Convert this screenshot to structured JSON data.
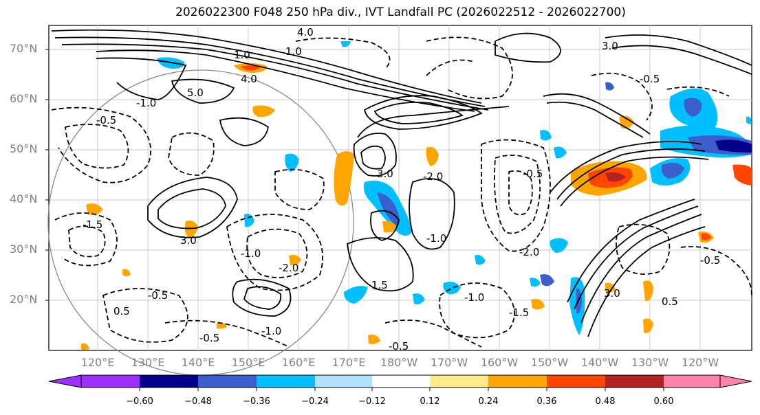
{
  "title": "2026022300 F048 250 hPa div., IVT Landfall PC (2026022512 - 2026022700)",
  "map": {
    "lat_labels": [
      "70°N",
      "60°N",
      "50°N",
      "40°N",
      "30°N",
      "20°N"
    ],
    "lon_labels": [
      "120°E",
      "130°E",
      "140°E",
      "150°E",
      "160°E",
      "170°E",
      "180°W",
      "170°W",
      "160°W",
      "150°W",
      "140°W",
      "130°W",
      "120°W"
    ],
    "contour_labels": [
      "4.0",
      "1.0",
      "3.0",
      "4.0",
      "5.0",
      "1.0",
      "3.0",
      "3.0",
      "0.5",
      "1.5",
      "3.0",
      "0.5",
      "-0.5",
      "-1.0",
      "-0.5",
      "-2.0",
      "-1.0",
      "-0.5",
      "-1.5",
      "-2.0",
      "-0.5",
      "-1.0",
      "-0.5",
      "-1.0",
      "-2.0",
      "-0.5",
      "-1.0",
      "-0.5",
      "-1.5"
    ]
  },
  "colorbar": {
    "ticks": [
      "−0.60",
      "−0.48",
      "−0.36",
      "−0.24",
      "−0.12",
      "0.12",
      "0.24",
      "0.36",
      "0.48",
      "0.60"
    ],
    "colors": [
      "#9b30ff",
      "#00008b",
      "#3a5fcd",
      "#00bfff",
      "#b0e2ff",
      "#ffffff",
      "#ffeb8b",
      "#ffa500",
      "#ff4500",
      "#b22222",
      "#ff82ab"
    ]
  }
}
